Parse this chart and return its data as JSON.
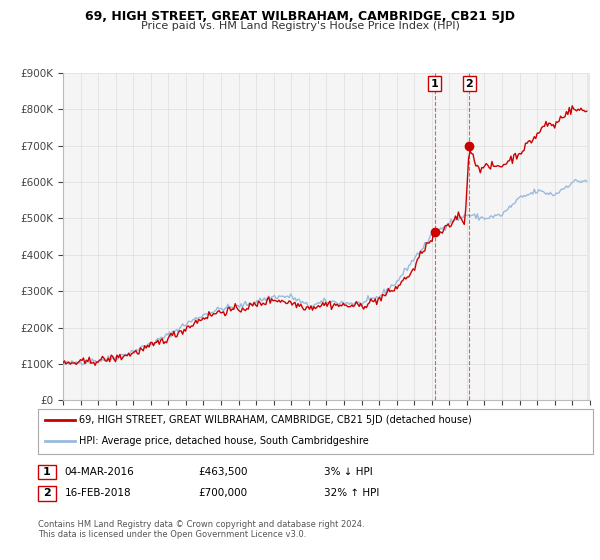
{
  "title": "69, HIGH STREET, GREAT WILBRAHAM, CAMBRIDGE, CB21 5JD",
  "subtitle": "Price paid vs. HM Land Registry's House Price Index (HPI)",
  "ylim": [
    0,
    900000
  ],
  "xlim": [
    1995,
    2025
  ],
  "ytick_vals": [
    0,
    100000,
    200000,
    300000,
    400000,
    500000,
    600000,
    700000,
    800000,
    900000
  ],
  "ytick_labels": [
    "£0",
    "£100K",
    "£200K",
    "£300K",
    "£400K",
    "£500K",
    "£600K",
    "£700K",
    "£800K",
    "£900K"
  ],
  "background_color": "#f5f5f5",
  "grid_color": "#dddddd",
  "red_line_color": "#cc0000",
  "blue_line_color": "#99bbdd",
  "marker_color": "#cc0000",
  "dashed_line_color": "#cc0000",
  "legend_line1": "69, HIGH STREET, GREAT WILBRAHAM, CAMBRIDGE, CB21 5JD (detached house)",
  "legend_line2": "HPI: Average price, detached house, South Cambridgeshire",
  "sale1_date": "04-MAR-2016",
  "sale1_price": "£463,500",
  "sale1_hpi": "3% ↓ HPI",
  "sale1_x": 2016.17,
  "sale1_y": 463500,
  "sale2_date": "16-FEB-2018",
  "sale2_price": "£700,000",
  "sale2_hpi": "32% ↑ HPI",
  "sale2_x": 2018.13,
  "sale2_y": 700000,
  "footnote1": "Contains HM Land Registry data © Crown copyright and database right 2024.",
  "footnote2": "This data is licensed under the Open Government Licence v3.0."
}
